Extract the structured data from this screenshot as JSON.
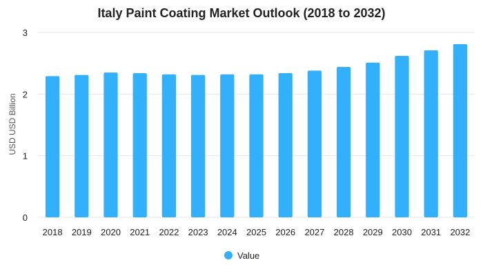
{
  "chart_data": {
    "type": "bar",
    "title": "Italy Paint Coating Market Outlook (2018 to 2032)",
    "xlabel": "",
    "ylabel": "USD USD Billion",
    "ylim": [
      0,
      3
    ],
    "yticks": [
      "0",
      "1",
      "2",
      "3"
    ],
    "categories": [
      "2018",
      "2019",
      "2020",
      "2021",
      "2022",
      "2023",
      "2024",
      "2025",
      "2026",
      "2027",
      "2028",
      "2029",
      "2030",
      "2031",
      "2032"
    ],
    "series": [
      {
        "name": "Value",
        "values": [
          2.29,
          2.31,
          2.35,
          2.34,
          2.32,
          2.31,
          2.32,
          2.32,
          2.34,
          2.38,
          2.44,
          2.51,
          2.62,
          2.71,
          2.81
        ]
      }
    ],
    "grid": true,
    "legend_position": "bottom-center",
    "colors": {
      "bar": "#33b0fc",
      "grid": "#e6e6e6",
      "text": "#222222"
    }
  }
}
